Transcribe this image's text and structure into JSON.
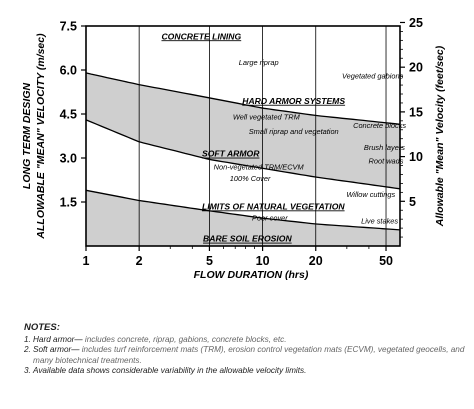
{
  "chart_data": {
    "type": "area",
    "xlabel": "FLOW DURATION (hrs)",
    "ylabel_left_line1": "LONG TERM DESIGN",
    "ylabel_left_line2": "ALLOWABLE \"MEAN\" VELOCITY (m/sec)",
    "ylabel_right": "Allowable \"Mean\" Velocity (feet/sec)",
    "x_scale": "log",
    "xlim": [
      1,
      60
    ],
    "x_ticks": [
      1,
      2,
      5,
      10,
      20,
      50
    ],
    "x_tick_labels": [
      "1",
      "2",
      "5",
      "10",
      "20",
      "50"
    ],
    "ylim_left": [
      0,
      7.5
    ],
    "y_ticks_left": [
      1.5,
      3.0,
      4.5,
      6.0,
      7.5
    ],
    "y_tick_labels_left": [
      "1.5",
      "3.0",
      "4.5",
      "6.0",
      "7.5"
    ],
    "y_ticks_right": [
      5,
      10,
      15,
      20,
      25
    ],
    "y_tick_labels_right": [
      "5",
      "10",
      "15",
      "20",
      "25"
    ],
    "grid": "vertical",
    "bands": [
      {
        "name": "Hard armor systems",
        "upper": {
          "x": [
            1,
            2,
            5,
            10,
            20,
            60
          ],
          "y": [
            5.9,
            5.5,
            5.05,
            4.7,
            4.45,
            4.15
          ]
        },
        "lower": {
          "x": [
            1,
            2,
            5,
            10,
            20,
            60
          ],
          "y": [
            4.3,
            3.55,
            2.95,
            2.65,
            2.35,
            1.95
          ]
        }
      },
      {
        "name": "Soft armor",
        "upper": {
          "x": [
            1,
            2,
            5,
            10,
            20,
            60
          ],
          "y": [
            4.3,
            3.55,
            2.95,
            2.65,
            2.35,
            1.95
          ]
        },
        "lower": {
          "x": [
            1,
            2,
            5,
            10,
            20,
            60
          ],
          "y": [
            1.9,
            1.55,
            1.2,
            0.95,
            0.75,
            0.55
          ]
        }
      },
      {
        "name": "Bare soil erosion",
        "upper": {
          "x": [
            1,
            2,
            5,
            10,
            20,
            60
          ],
          "y": [
            1.9,
            1.55,
            1.2,
            0.95,
            0.75,
            0.55
          ]
        },
        "lower": {
          "x": [
            1,
            60
          ],
          "y": [
            0,
            0
          ]
        }
      }
    ],
    "zone_labels": [
      {
        "text": "CONCRETE LINING",
        "x": 4.5,
        "y": 7.15
      },
      {
        "text": "HARD ARMOR SYSTEMS",
        "x": 15,
        "y": 4.95
      },
      {
        "text": "SOFT ARMOR",
        "x": 6.6,
        "y": 3.15
      },
      {
        "text": "LIMITS OF NATURAL VEGETATION",
        "x": 11.5,
        "y": 1.35
      },
      {
        "text": "BARE SOIL EROSION",
        "x": 8.2,
        "y": 0.25
      }
    ],
    "annotations": [
      {
        "text": "Large riprap",
        "x": 9.5,
        "y": 6.25
      },
      {
        "text": "Vegetated gabions",
        "x": 42,
        "y": 5.8
      },
      {
        "text": "Well vegetated TRM",
        "x": 10.5,
        "y": 4.4
      },
      {
        "text": "Concrete blocks",
        "x": 46,
        "y": 4.1
      },
      {
        "text": "Small riprap and vegetation",
        "x": 15,
        "y": 3.9
      },
      {
        "text": "Brush layers",
        "x": 49,
        "y": 3.35
      },
      {
        "text": "Non-vegetated TRM/ECVM",
        "x": 9.5,
        "y": 2.7
      },
      {
        "text": "Root wads",
        "x": 50,
        "y": 2.9
      },
      {
        "text": "100% Cover",
        "x": 8.5,
        "y": 2.3
      },
      {
        "text": "Willow cuttings",
        "x": 41,
        "y": 1.75
      },
      {
        "text": "Poor cover",
        "x": 11,
        "y": 0.95
      },
      {
        "text": "Live stakes",
        "x": 46,
        "y": 0.85
      }
    ]
  },
  "notes": {
    "title": "NOTES:",
    "items": [
      {
        "num": "1.",
        "term": "Hard armor—",
        "text": "includes concrete, riprap, gabions, concrete blocks, etc."
      },
      {
        "num": "2.",
        "term": "Soft armor—",
        "text": "includes turf reinforcement mats (TRM), erosion control vegetation mats (ECVM), vegetated geocells, and many biotechnical treatments."
      },
      {
        "num": "3.",
        "term": "",
        "text": "Available data shows considerable variability in the allowable velocity limits."
      }
    ]
  }
}
